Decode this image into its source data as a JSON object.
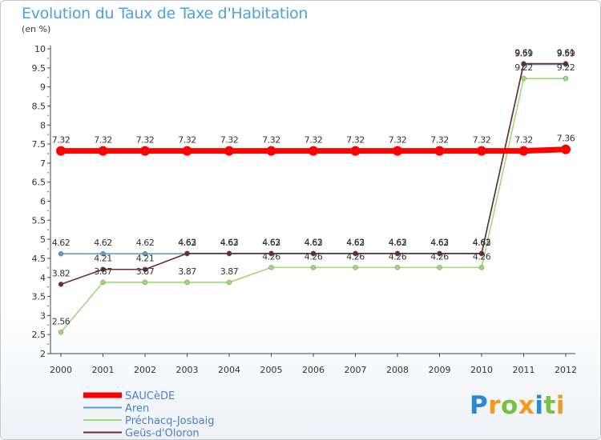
{
  "chart_data": {
    "type": "line",
    "title": "Evolution du Taux de Taxe d'Habitation",
    "subtitle": "(en %)",
    "xlabel": "",
    "ylabel": "",
    "ylim": [
      2,
      10
    ],
    "yticks": [
      "2",
      "2.5",
      "3",
      "3.5",
      "4",
      "4.5",
      "5",
      "5.5",
      "6",
      "6.5",
      "7",
      "7.5",
      "8",
      "8.5",
      "9",
      "9.5",
      "10"
    ],
    "x": [
      "2000",
      "2001",
      "2002",
      "2003",
      "2004",
      "2005",
      "2006",
      "2007",
      "2008",
      "2009",
      "2010",
      "2011",
      "2012"
    ],
    "series": [
      {
        "name": "SAUCèDE",
        "color": "#ff0000",
        "values": [
          7.32,
          7.32,
          7.32,
          7.32,
          7.32,
          7.32,
          7.32,
          7.32,
          7.32,
          7.32,
          7.32,
          7.32,
          7.36
        ],
        "labels": [
          "7.32",
          "7.32",
          "7.32",
          "7.32",
          "7.32",
          "7.32",
          "7.32",
          "7.32",
          "7.32",
          "7.32",
          "7.32",
          "7.32",
          "7.36"
        ]
      },
      {
        "name": "Aren",
        "color": "#5f9ecf",
        "values": [
          4.62,
          4.62,
          4.62,
          4.62,
          4.62,
          4.62,
          4.62,
          4.62,
          4.62,
          4.62,
          4.62,
          9.59,
          9.59
        ],
        "labels": [
          "4.62",
          "4.62",
          "4.62",
          "4.62",
          "4.62",
          "4.62",
          "4.62",
          "4.62",
          "4.62",
          "4.62",
          "4.62",
          "9.59",
          "9.59"
        ]
      },
      {
        "name": "Préchacq-Josbaig",
        "color": "#9edb73",
        "values": [
          2.56,
          3.87,
          3.87,
          3.87,
          3.87,
          4.26,
          4.26,
          4.26,
          4.26,
          4.26,
          4.26,
          9.22,
          9.22
        ],
        "labels": [
          "2.56",
          "3.87",
          "3.87",
          "3.87",
          "3.87",
          "4.26",
          "4.26",
          "4.26",
          "4.26",
          "4.26",
          "4.26",
          "9.22",
          "9.22"
        ]
      },
      {
        "name": "Geüs-d'Oloron",
        "color": "#6b2c37",
        "values": [
          3.82,
          4.21,
          4.21,
          4.63,
          4.63,
          4.63,
          4.63,
          4.63,
          4.63,
          4.63,
          4.63,
          9.61,
          9.61
        ],
        "labels": [
          "3.82",
          "4.21",
          "4.21",
          "4.63",
          "4.63",
          "4.63",
          "4.63",
          "4.63",
          "4.63",
          "4.63",
          "4.63",
          "9.61",
          "9.61"
        ]
      }
    ],
    "legend_position": "bottom-left",
    "grid": false
  },
  "logo": {
    "text": "Proxiti",
    "letters": [
      "P",
      "r",
      "o",
      "x",
      "i",
      "t",
      "i"
    ],
    "colors": [
      "#2b8ad6",
      "#f39b1f",
      "#7bc043",
      "#f39b1f",
      "#2b8ad6",
      "#7bc043",
      "#f39b1f"
    ]
  }
}
